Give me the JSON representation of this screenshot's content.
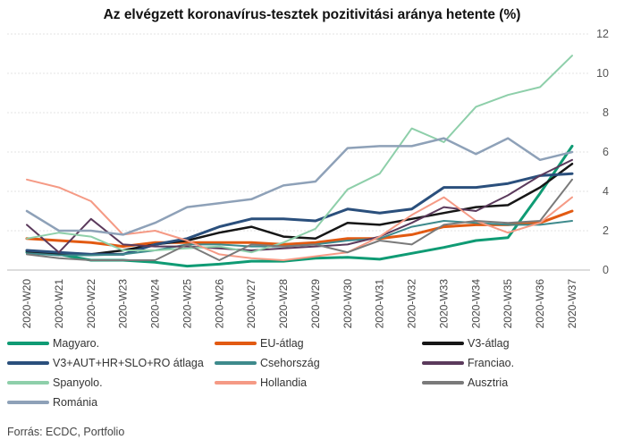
{
  "title": "Az elvégzett koronavírus-tesztek pozitivitási aránya hetente (%)",
  "source": "Forrás: ECDC, Portfolio",
  "chart_data": {
    "type": "line",
    "title": "Az elvégzett koronavírus-tesztek pozitivitási aránya hetente (%)",
    "xlabel": "",
    "ylabel": "",
    "categories": [
      "2020-W20",
      "2020-W21",
      "2020-W22",
      "2020-W23",
      "2020-W24",
      "2020-W25",
      "2020-W26",
      "2020-W27",
      "2020-W28",
      "2020-W29",
      "2020-W30",
      "2020-W31",
      "2020-W32",
      "2020-W33",
      "2020-W34",
      "2020-W35",
      "2020-W36",
      "2020-W37"
    ],
    "ylim": [
      0,
      12
    ],
    "yticks": [
      0,
      2,
      4,
      6,
      8,
      10,
      12
    ],
    "y_axis_side": "right",
    "grid": "horizontal",
    "legend_position": "bottom",
    "series": [
      {
        "name": "Magyaro.",
        "color": "#0f9b74",
        "width": 3,
        "values": [
          0.9,
          0.8,
          0.5,
          0.5,
          0.4,
          0.2,
          0.3,
          0.45,
          0.45,
          0.6,
          0.65,
          0.55,
          0.85,
          1.15,
          1.5,
          1.65,
          3.9,
          6.3
        ]
      },
      {
        "name": "EU-átlag",
        "color": "#e25a12",
        "width": 3,
        "values": [
          1.6,
          1.5,
          1.4,
          1.2,
          1.4,
          1.4,
          1.4,
          1.4,
          1.3,
          1.4,
          1.6,
          1.6,
          1.8,
          2.2,
          2.3,
          2.3,
          2.4,
          3.0
        ]
      },
      {
        "name": "V3-átlag",
        "color": "#161616",
        "width": 2.5,
        "values": [
          0.95,
          0.8,
          0.8,
          1.0,
          1.3,
          1.5,
          1.9,
          2.2,
          1.7,
          1.6,
          2.4,
          2.3,
          2.6,
          2.9,
          3.2,
          3.3,
          4.2,
          5.4
        ]
      },
      {
        "name": "V3+AUT+HR+SLO+RO átlaga",
        "color": "#2a4f7c",
        "width": 3,
        "values": [
          1.0,
          0.9,
          0.8,
          0.8,
          1.3,
          1.6,
          2.2,
          2.6,
          2.6,
          2.5,
          3.1,
          2.9,
          3.1,
          4.2,
          4.2,
          4.4,
          4.8,
          4.9
        ]
      },
      {
        "name": "Csehország",
        "color": "#3e8a8c",
        "width": 2,
        "values": [
          0.85,
          0.75,
          0.75,
          0.8,
          1.0,
          1.3,
          1.3,
          1.2,
          1.2,
          1.3,
          1.5,
          1.6,
          2.2,
          2.5,
          2.4,
          2.3,
          2.3,
          2.5
        ]
      },
      {
        "name": "Franciao.",
        "color": "#5b3a5c",
        "width": 2,
        "values": [
          2.3,
          0.9,
          2.6,
          1.3,
          1.2,
          1.2,
          1.1,
          1.0,
          1.1,
          1.2,
          1.3,
          1.7,
          2.4,
          3.2,
          3.0,
          3.8,
          4.8,
          5.6
        ]
      },
      {
        "name": "Spanyolo.",
        "color": "#8ecfaa",
        "width": 2,
        "values": [
          1.6,
          1.9,
          1.7,
          1.0,
          1.0,
          1.1,
          1.2,
          0.9,
          1.4,
          2.1,
          4.1,
          4.9,
          7.2,
          6.5,
          8.3,
          8.9,
          9.3,
          10.9
        ]
      },
      {
        "name": "Hollandia",
        "color": "#f59a85",
        "width": 2,
        "values": [
          4.6,
          4.2,
          3.5,
          1.8,
          2.0,
          1.5,
          0.8,
          0.6,
          0.5,
          0.7,
          0.9,
          1.7,
          2.8,
          3.7,
          2.5,
          1.9,
          2.4,
          3.7
        ]
      },
      {
        "name": "Ausztria",
        "color": "#7a7a7a",
        "width": 2,
        "values": [
          0.8,
          0.6,
          0.5,
          0.5,
          0.5,
          1.3,
          0.5,
          1.3,
          1.2,
          1.3,
          0.9,
          1.5,
          1.3,
          2.3,
          2.5,
          2.4,
          2.5,
          4.6
        ]
      },
      {
        "name": "Románia",
        "color": "#8ea1b8",
        "width": 2.5,
        "values": [
          3.0,
          2.0,
          2.0,
          1.8,
          2.4,
          3.2,
          3.4,
          3.6,
          4.3,
          4.5,
          6.2,
          6.3,
          6.3,
          6.7,
          5.9,
          6.7,
          5.6,
          6.0
        ]
      }
    ]
  }
}
